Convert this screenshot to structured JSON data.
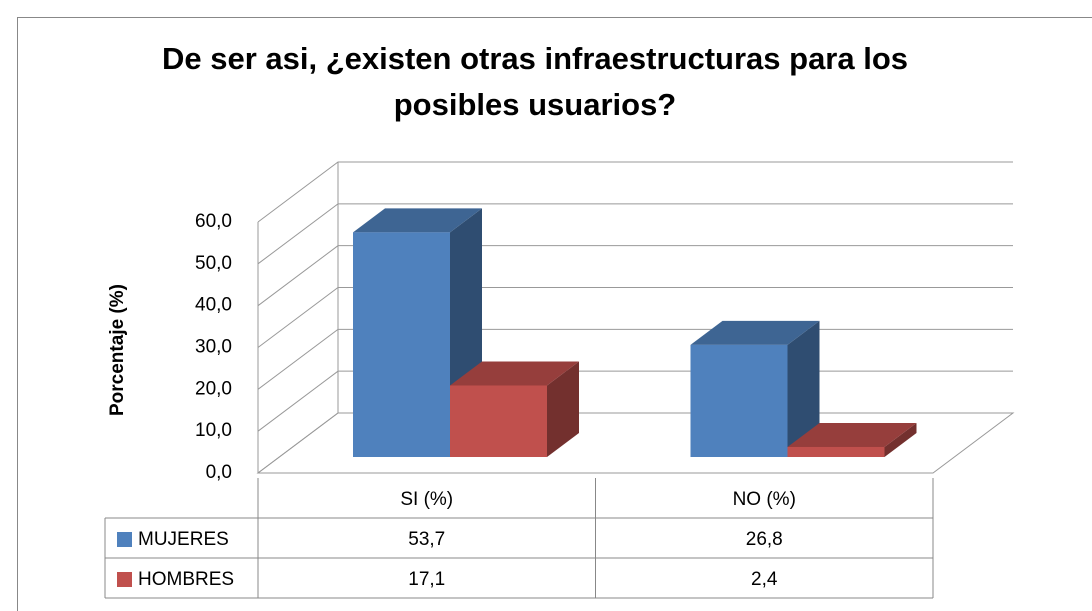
{
  "chart_data": {
    "type": "bar3d",
    "title": "De ser asi, ¿existen otras infraestructuras para los posibles usuarios?",
    "ylabel": "Porcentaje (%)",
    "categories": [
      "SI (%)",
      "NO (%)"
    ],
    "series": [
      {
        "name": "MUJERES",
        "color": "#4f81bd",
        "values": [
          53.7,
          26.8
        ],
        "value_labels": [
          "53,7",
          "26,8"
        ]
      },
      {
        "name": "HOMBRES",
        "color": "#c0504d",
        "values": [
          17.1,
          2.4
        ],
        "value_labels": [
          "17,1",
          "2,4"
        ]
      }
    ],
    "ylim": [
      0,
      60
    ],
    "yticks": [
      {
        "value": 0,
        "label": "0,0"
      },
      {
        "value": 10,
        "label": "10,0"
      },
      {
        "value": 20,
        "label": "20,0"
      },
      {
        "value": 30,
        "label": "30,0"
      },
      {
        "value": 40,
        "label": "40,0"
      },
      {
        "value": 50,
        "label": "50,0"
      },
      {
        "value": 60,
        "label": "60,0"
      }
    ],
    "grid": true
  }
}
